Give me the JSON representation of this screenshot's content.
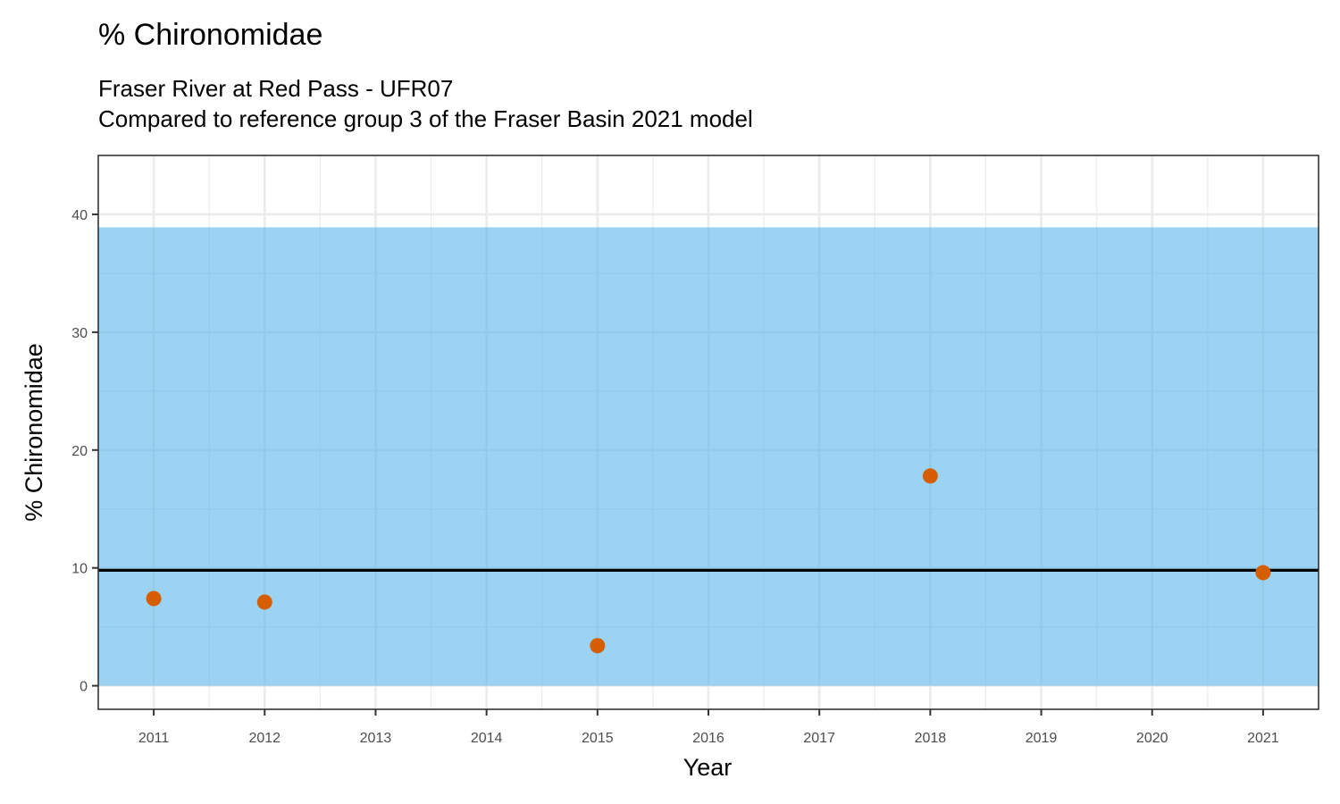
{
  "chart_data": {
    "type": "scatter",
    "title": "% Chironomidae",
    "subtitle_lines": [
      "Fraser River at Red Pass - UFR07",
      "Compared to reference group 3 of the Fraser Basin 2021 model"
    ],
    "xlabel": "Year",
    "ylabel": "% Chironomidae",
    "xlim": [
      2010.5,
      2021.5
    ],
    "ylim": [
      -2,
      45
    ],
    "x_ticks": [
      2011,
      2012,
      2013,
      2014,
      2015,
      2016,
      2017,
      2018,
      2019,
      2020,
      2021
    ],
    "y_ticks": [
      0,
      10,
      20,
      30,
      40
    ],
    "grid": true,
    "reference_band": {
      "ymin": 0,
      "ymax": 38.9,
      "color": "#56B4E9"
    },
    "reference_line": {
      "y": 9.8,
      "color": "#000000"
    },
    "series": [
      {
        "color": "#D55E00",
        "points": [
          {
            "x": 2011,
            "y": 7.4
          },
          {
            "x": 2012,
            "y": 7.1
          },
          {
            "x": 2015,
            "y": 3.4
          },
          {
            "x": 2018,
            "y": 17.8
          },
          {
            "x": 2021,
            "y": 9.6
          }
        ]
      }
    ]
  }
}
